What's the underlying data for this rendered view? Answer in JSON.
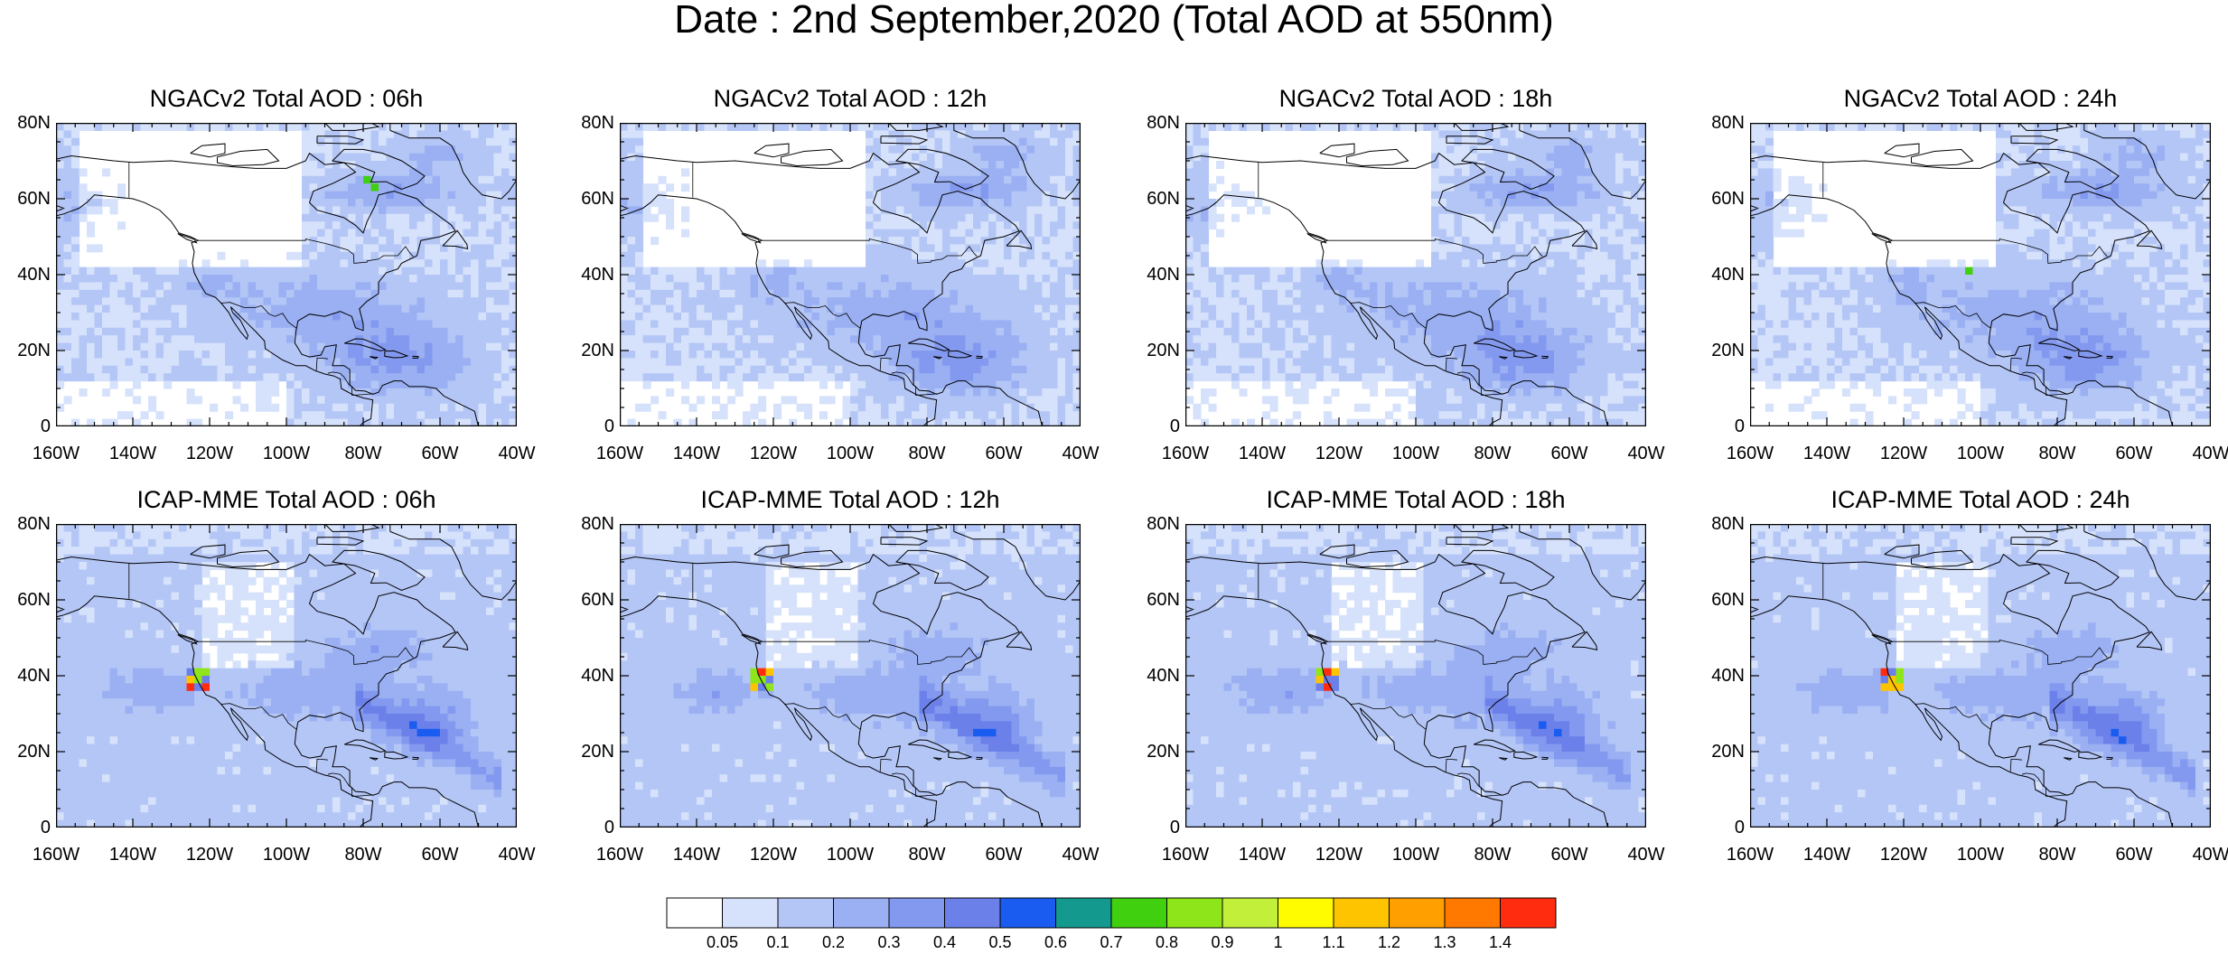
{
  "title": "Date : 2nd September,2020 (Total AOD at 550nm)",
  "panels": [
    {
      "title": "NGACv2 Total AOD : 06h",
      "model": "ngac",
      "hour": 6
    },
    {
      "title": "NGACv2 Total AOD : 12h",
      "model": "ngac",
      "hour": 12
    },
    {
      "title": "NGACv2 Total AOD : 18h",
      "model": "ngac",
      "hour": 18
    },
    {
      "title": "NGACv2 Total AOD : 24h",
      "model": "ngac",
      "hour": 24
    },
    {
      "title": "ICAP-MME Total AOD : 06h",
      "model": "icap",
      "hour": 6
    },
    {
      "title": "ICAP-MME Total AOD : 12h",
      "model": "icap",
      "hour": 12
    },
    {
      "title": "ICAP-MME Total AOD : 18h",
      "model": "icap",
      "hour": 18
    },
    {
      "title": "ICAP-MME Total AOD : 24h",
      "model": "icap",
      "hour": 24
    }
  ],
  "lat_labels": [
    "80N",
    "60N",
    "40N",
    "20N",
    "0"
  ],
  "lon_labels": [
    "160W",
    "140W",
    "120W",
    "100W",
    "80W",
    "60W",
    "40W"
  ],
  "colorbar": {
    "labels": [
      "0.05",
      "0.1",
      "0.2",
      "0.3",
      "0.4",
      "0.5",
      "0.6",
      "0.7",
      "0.8",
      "0.9",
      "1",
      "1.1",
      "1.2",
      "1.3",
      "1.4"
    ],
    "colors": [
      "#ffffff",
      "#d6e2fb",
      "#b4c6f6",
      "#9ab0f3",
      "#8399ef",
      "#6c80ea",
      "#1a5cf0",
      "#14998f",
      "#40d010",
      "#8ee61a",
      "#c2ef3a",
      "#fffc00",
      "#ffc400",
      "#ffa000",
      "#ff7800",
      "#ff2c10"
    ]
  }
}
